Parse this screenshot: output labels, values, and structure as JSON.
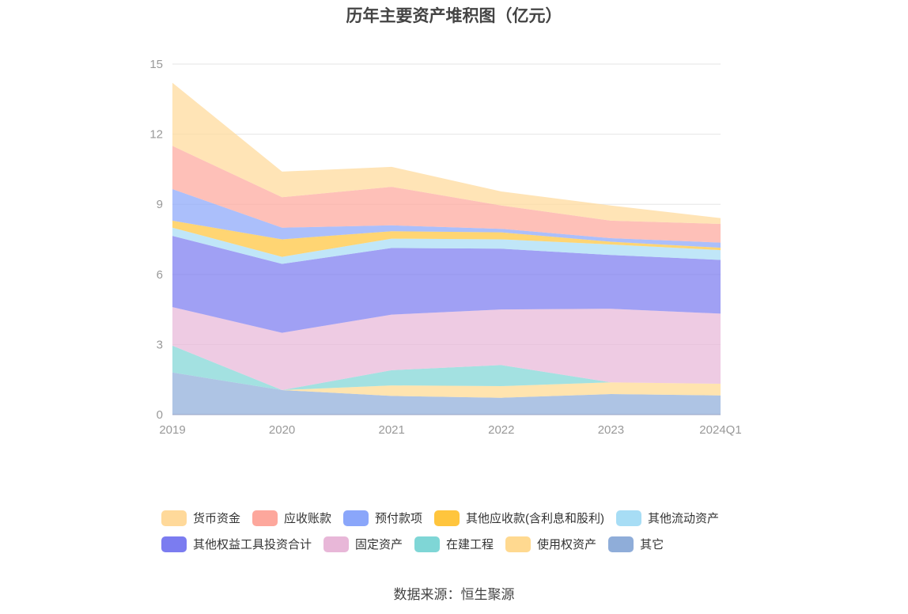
{
  "source": "数据来源：恒生聚源",
  "chart_data": {
    "type": "area",
    "stacked": true,
    "title": "历年主要资产堆积图（亿元）",
    "xlabel": "",
    "ylabel": "",
    "categories": [
      "2019",
      "2020",
      "2021",
      "2022",
      "2023",
      "2024Q1"
    ],
    "ylim": [
      0,
      15
    ],
    "yticks": [
      "0",
      "3",
      "6",
      "9",
      "12",
      "15"
    ],
    "grid": true,
    "legend_position": "bottom",
    "series": [
      {
        "name": "其它",
        "color": "#8fadd9",
        "values": [
          1.8,
          1.05,
          0.8,
          0.72,
          0.88,
          0.82
        ]
      },
      {
        "name": "使用权资产",
        "color": "#ffd990",
        "values": [
          0.0,
          0.0,
          0.45,
          0.5,
          0.5,
          0.5
        ]
      },
      {
        "name": "在建工程",
        "color": "#7fd6d6",
        "values": [
          1.15,
          0.0,
          0.65,
          0.9,
          0.0,
          0.0
        ]
      },
      {
        "name": "固定资产",
        "color": "#e8b7d8",
        "values": [
          1.65,
          2.45,
          2.38,
          2.38,
          3.15,
          3.0
        ]
      },
      {
        "name": "其他权益工具投资合计",
        "color": "#7b7cf0",
        "values": [
          3.05,
          2.95,
          2.85,
          2.6,
          2.3,
          2.3
        ]
      },
      {
        "name": "其他流动资产",
        "color": "#a7ddf5",
        "values": [
          0.35,
          0.3,
          0.4,
          0.4,
          0.45,
          0.42
        ]
      },
      {
        "name": "其他应收款(含利息和股利)",
        "color": "#ffc53d",
        "values": [
          0.3,
          0.75,
          0.32,
          0.3,
          0.12,
          0.1
        ]
      },
      {
        "name": "预付款项",
        "color": "#8aa6fa",
        "values": [
          1.35,
          0.5,
          0.25,
          0.15,
          0.15,
          0.22
        ]
      },
      {
        "name": "应收账款",
        "color": "#fda79c",
        "values": [
          1.85,
          1.3,
          1.65,
          1.0,
          0.75,
          0.8
        ]
      },
      {
        "name": "货币资金",
        "color": "#ffd99a",
        "values": [
          2.7,
          1.1,
          0.85,
          0.6,
          0.65,
          0.25
        ]
      }
    ]
  },
  "legend_rows": [
    [
      "货币资金",
      "应收账款",
      "预付款项",
      "其他应收款(含利息和股利)",
      "其他流动资产"
    ],
    [
      "其他权益工具投资合计",
      "固定资产",
      "在建工程",
      "使用权资产",
      "其它"
    ]
  ]
}
